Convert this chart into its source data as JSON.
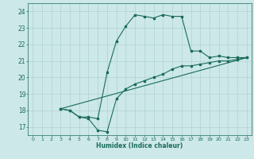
{
  "xlabel": "Humidex (Indice chaleur)",
  "ylabel": "",
  "background_color": "#cce8e8",
  "grid_color": "#aacccc",
  "line_color": "#1a6b5a",
  "xlim": [
    -0.5,
    23.5
  ],
  "ylim": [
    16.5,
    24.5
  ],
  "xticks": [
    0,
    1,
    2,
    3,
    4,
    5,
    6,
    7,
    8,
    9,
    10,
    11,
    12,
    13,
    14,
    15,
    16,
    17,
    18,
    19,
    20,
    21,
    22,
    23
  ],
  "yticks": [
    17,
    18,
    19,
    20,
    21,
    22,
    23,
    24
  ],
  "line1_x": [
    3,
    4,
    5,
    6,
    7,
    8,
    9,
    10,
    11,
    12,
    13,
    14,
    15,
    16,
    17,
    18,
    19,
    20,
    21,
    22,
    23
  ],
  "line1_y": [
    18.1,
    18.0,
    17.6,
    17.6,
    17.5,
    20.3,
    22.2,
    23.1,
    23.8,
    23.7,
    23.6,
    23.8,
    23.7,
    23.7,
    21.6,
    21.6,
    21.2,
    21.3,
    21.2,
    21.2,
    21.2
  ],
  "line2_x": [
    3,
    4,
    5,
    6,
    7,
    8,
    9,
    10,
    11,
    12,
    13,
    14,
    15,
    16,
    17,
    18,
    19,
    20,
    21,
    22,
    23
  ],
  "line2_y": [
    18.1,
    18.0,
    17.6,
    17.5,
    16.8,
    16.7,
    18.7,
    19.3,
    19.6,
    19.8,
    20.0,
    20.2,
    20.5,
    20.7,
    20.7,
    20.8,
    20.9,
    21.0,
    21.0,
    21.1,
    21.2
  ],
  "line3_x": [
    3,
    23
  ],
  "line3_y": [
    18.1,
    21.2
  ]
}
